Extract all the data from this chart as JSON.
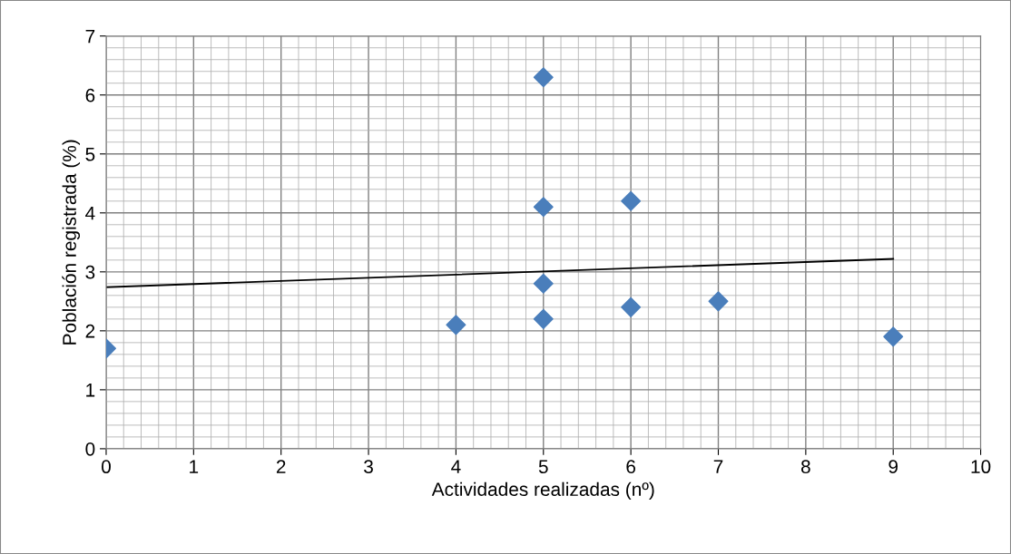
{
  "chart_data": {
    "type": "scatter",
    "xlabel": "Actividades realizadas (nº)",
    "ylabel": "Población registrada (%)",
    "xlim": [
      0,
      10
    ],
    "xticks": [
      0,
      1,
      2,
      3,
      4,
      5,
      6,
      7,
      8,
      9,
      10
    ],
    "ylim": [
      0,
      7
    ],
    "yticks": [
      0,
      1,
      2,
      3,
      4,
      5,
      6,
      7
    ],
    "grid": true,
    "marker": "diamond",
    "series": [
      {
        "color": "#4a7ebb",
        "x": [
          0,
          4,
          5,
          5,
          5,
          5,
          6,
          6,
          7,
          9
        ],
        "values": [
          1.7,
          2.1,
          6.3,
          4.1,
          2.8,
          2.2,
          4.2,
          2.4,
          2.5,
          1.9
        ]
      },
      {
        "type": "line",
        "marker": "none",
        "color": "#000000",
        "x": [
          0,
          9
        ],
        "values": [
          2.74,
          3.22
        ]
      }
    ]
  }
}
